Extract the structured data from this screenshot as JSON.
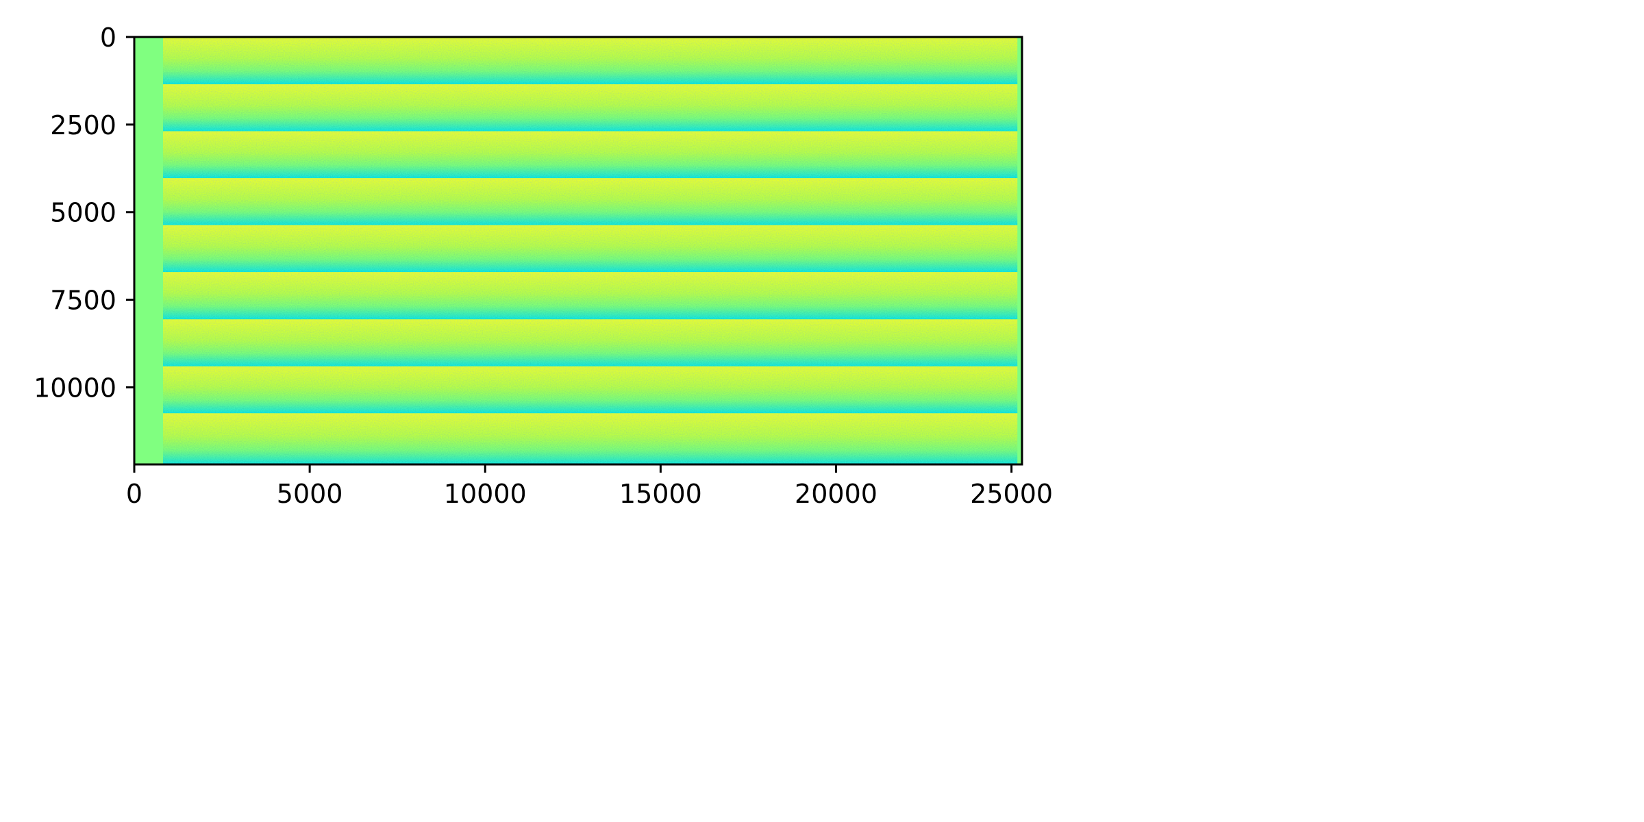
{
  "chart_data": {
    "type": "heatmap",
    "title": "",
    "xlabel": "",
    "ylabel": "",
    "colormap": "jet",
    "xlim": [
      0,
      25300
    ],
    "ylim": [
      12200,
      0
    ],
    "y_axis_inverted": true,
    "grid": false,
    "colorbar": false,
    "xticks": [
      0,
      5000,
      10000,
      15000,
      20000,
      25000
    ],
    "xtick_labels": [
      "0",
      "5000",
      "10000",
      "15000",
      "20000",
      "25000"
    ],
    "yticks": [
      0,
      2500,
      5000,
      7500,
      10000
    ],
    "ytick_labels": [
      "0",
      "2500",
      "5000",
      "7500",
      "10000"
    ],
    "left_padding_band": {
      "x_range": [
        0,
        820
      ],
      "color": "#80ff80"
    },
    "right_padding_band": {
      "x_range": [
        25170,
        25300
      ],
      "color": "#80ff80"
    },
    "stripe_count": 9,
    "stripe_boundaries_y": [
      0,
      1350,
      2690,
      4030,
      5370,
      6710,
      8060,
      9400,
      10740,
      12200
    ],
    "stripe_color_top": "#e8ff2a",
    "stripe_color_bottom": "#18e8e0",
    "stripe_color_mid": "#7dff7a"
  }
}
